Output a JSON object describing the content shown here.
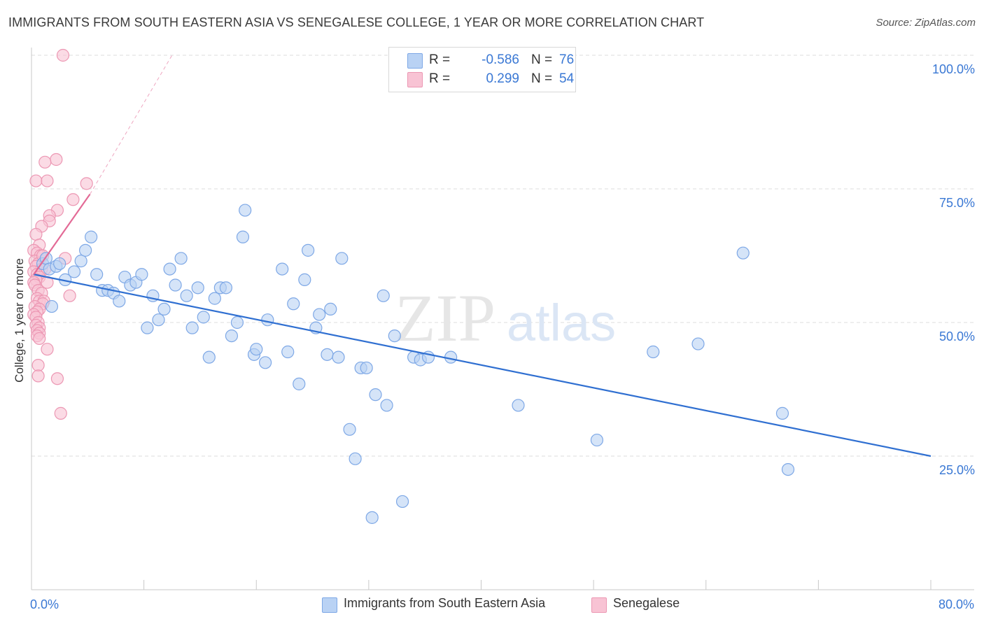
{
  "header": {
    "title": "IMMIGRANTS FROM SOUTH EASTERN ASIA VS SENEGALESE COLLEGE, 1 YEAR OR MORE CORRELATION CHART",
    "source": "Source: ZipAtlas.com"
  },
  "legend": {
    "rows": [
      {
        "r_label": "R =",
        "r_value": "-0.586",
        "n_label": "N =",
        "n_value": "76"
      },
      {
        "r_label": "R =",
        "r_value": "0.299",
        "n_label": "N =",
        "n_value": "54"
      }
    ]
  },
  "colors": {
    "blue_fill": "#b9d2f4",
    "blue_stroke": "#7ea8e6",
    "blue_line": "#2f6fd1",
    "pink_fill": "#f8c3d4",
    "pink_stroke": "#ec97b3",
    "pink_line": "#e36a96",
    "axis_text": "#3a78d4",
    "grid": "#dcdcdc"
  },
  "watermark": {
    "zip": "ZIP",
    "atlas": "atlas"
  },
  "chart_data": {
    "type": "scatter",
    "ylabel": "College, 1 year or more",
    "xlim": [
      0,
      80
    ],
    "ylim": [
      0,
      100
    ],
    "x_tick_labels": [
      {
        "value": 0,
        "label": "0.0%"
      },
      {
        "value": 80,
        "label": "80.0%"
      }
    ],
    "y_tick_labels": [
      {
        "value": 25,
        "label": "25.0%"
      },
      {
        "value": 50,
        "label": "50.0%"
      },
      {
        "value": 75,
        "label": "75.0%"
      },
      {
        "value": 100,
        "label": "100.0%"
      }
    ],
    "grid": true,
    "legend_position": "top-center",
    "series": [
      {
        "name": "Immigrants from South Eastern Asia",
        "color": "#7ea8e6",
        "r": -0.586,
        "n": 76,
        "trend": {
          "x": [
            0.2,
            80
          ],
          "y": [
            59.0,
            25.0
          ],
          "style": "solid"
        },
        "points": [
          [
            1.0,
            61.0
          ],
          [
            1.3,
            62.0
          ],
          [
            1.6,
            60.0
          ],
          [
            2.2,
            60.5
          ],
          [
            2.5,
            61.0
          ],
          [
            3.0,
            58.0
          ],
          [
            3.8,
            59.5
          ],
          [
            4.4,
            61.5
          ],
          [
            4.8,
            63.5
          ],
          [
            5.3,
            66.0
          ],
          [
            5.8,
            59.0
          ],
          [
            6.3,
            56.0
          ],
          [
            6.8,
            56.0
          ],
          [
            7.3,
            55.5
          ],
          [
            7.8,
            54.0
          ],
          [
            8.3,
            58.5
          ],
          [
            8.8,
            57.0
          ],
          [
            9.3,
            57.5
          ],
          [
            9.8,
            59.0
          ],
          [
            10.3,
            49.0
          ],
          [
            10.8,
            55.0
          ],
          [
            11.3,
            50.5
          ],
          [
            11.8,
            52.5
          ],
          [
            12.3,
            60.0
          ],
          [
            12.8,
            57.0
          ],
          [
            13.3,
            62.0
          ],
          [
            13.8,
            55.0
          ],
          [
            14.3,
            49.0
          ],
          [
            14.8,
            56.5
          ],
          [
            15.3,
            51.0
          ],
          [
            15.8,
            43.5
          ],
          [
            16.3,
            54.5
          ],
          [
            16.8,
            56.5
          ],
          [
            17.3,
            56.5
          ],
          [
            17.8,
            47.5
          ],
          [
            18.3,
            50.0
          ],
          [
            18.8,
            66.0
          ],
          [
            19.0,
            71.0
          ],
          [
            19.8,
            44.0
          ],
          [
            20.0,
            45.0
          ],
          [
            20.8,
            42.5
          ],
          [
            21.0,
            50.5
          ],
          [
            22.3,
            60.0
          ],
          [
            22.8,
            44.5
          ],
          [
            23.3,
            53.5
          ],
          [
            23.8,
            38.5
          ],
          [
            24.3,
            58.0
          ],
          [
            24.6,
            63.5
          ],
          [
            25.3,
            49.0
          ],
          [
            25.6,
            51.5
          ],
          [
            26.3,
            44.0
          ],
          [
            26.6,
            52.5
          ],
          [
            27.3,
            43.5
          ],
          [
            27.6,
            62.0
          ],
          [
            28.3,
            30.0
          ],
          [
            28.8,
            24.5
          ],
          [
            29.3,
            41.5
          ],
          [
            29.8,
            41.5
          ],
          [
            30.3,
            13.5
          ],
          [
            30.6,
            36.5
          ],
          [
            31.3,
            55.0
          ],
          [
            31.6,
            34.5
          ],
          [
            32.3,
            47.5
          ],
          [
            33.0,
            16.5
          ],
          [
            34.0,
            43.5
          ],
          [
            34.6,
            43.0
          ],
          [
            35.3,
            43.5
          ],
          [
            37.3,
            43.5
          ],
          [
            43.3,
            34.5
          ],
          [
            50.3,
            28.0
          ],
          [
            55.3,
            44.5
          ],
          [
            59.3,
            46.0
          ],
          [
            63.3,
            63.0
          ],
          [
            66.8,
            33.0
          ],
          [
            67.3,
            22.5
          ],
          [
            1.8,
            53.0
          ]
        ]
      },
      {
        "name": "Senegalese",
        "color": "#ec97b3",
        "r": 0.299,
        "n": 54,
        "trend": {
          "x": [
            0.2,
            5.2
          ],
          "y": [
            59.0,
            74.0
          ],
          "style": "solid"
        },
        "trend_extension": {
          "x": [
            5.2,
            12.5
          ],
          "y": [
            74.0,
            100.0
          ],
          "style": "dashed"
        },
        "points": [
          [
            2.8,
            100.0
          ],
          [
            2.2,
            80.5
          ],
          [
            1.2,
            80.0
          ],
          [
            0.4,
            76.5
          ],
          [
            1.4,
            76.5
          ],
          [
            4.9,
            76.0
          ],
          [
            3.7,
            73.0
          ],
          [
            2.3,
            71.0
          ],
          [
            1.6,
            70.0
          ],
          [
            1.6,
            69.0
          ],
          [
            0.9,
            68.0
          ],
          [
            0.4,
            66.5
          ],
          [
            0.7,
            64.5
          ],
          [
            0.2,
            63.5
          ],
          [
            0.5,
            63.0
          ],
          [
            0.8,
            62.5
          ],
          [
            0.3,
            61.5
          ],
          [
            0.6,
            61.0
          ],
          [
            0.4,
            60.5
          ],
          [
            0.9,
            60.0
          ],
          [
            1.2,
            60.0
          ],
          [
            0.2,
            59.5
          ],
          [
            0.5,
            59.0
          ],
          [
            0.7,
            58.5
          ],
          [
            0.4,
            58.0
          ],
          [
            0.2,
            57.5
          ],
          [
            1.4,
            57.5
          ],
          [
            0.3,
            57.0
          ],
          [
            0.6,
            56.0
          ],
          [
            0.9,
            55.5
          ],
          [
            3.4,
            55.0
          ],
          [
            0.5,
            54.5
          ],
          [
            0.7,
            54.0
          ],
          [
            1.1,
            54.0
          ],
          [
            1.0,
            53.5
          ],
          [
            0.3,
            53.0
          ],
          [
            0.7,
            52.5
          ],
          [
            0.5,
            52.0
          ],
          [
            0.2,
            51.5
          ],
          [
            0.4,
            51.0
          ],
          [
            0.6,
            50.0
          ],
          [
            0.4,
            49.5
          ],
          [
            0.7,
            49.0
          ],
          [
            0.5,
            48.5
          ],
          [
            0.7,
            48.0
          ],
          [
            0.5,
            47.5
          ],
          [
            0.7,
            47.0
          ],
          [
            1.4,
            45.0
          ],
          [
            0.6,
            42.0
          ],
          [
            0.6,
            40.0
          ],
          [
            2.3,
            39.5
          ],
          [
            2.6,
            33.0
          ],
          [
            3.0,
            62.0
          ],
          [
            1.0,
            62.5
          ]
        ]
      }
    ]
  }
}
